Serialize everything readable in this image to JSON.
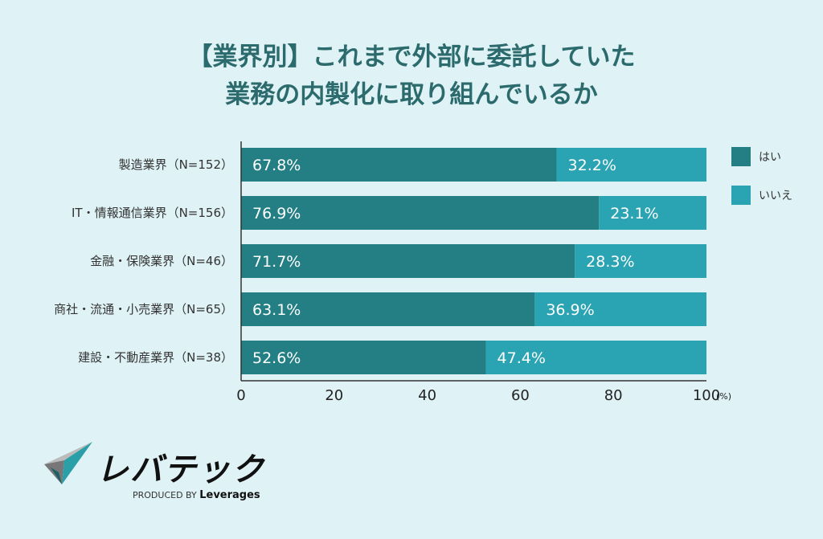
{
  "chart_data": {
    "type": "bar",
    "orientation": "horizontal-stacked",
    "title_lines": [
      "【業界別】これまで外部に委託していた",
      "業務の内製化に取り組んでいるか"
    ],
    "categories": [
      "製造業界（N=152）",
      "IT・情報通信業界（N=156）",
      "金融・保険業界（N=46）",
      "商社・流通・小売業界（N=65）",
      "建設・不動産業界（N=38）"
    ],
    "series": [
      {
        "name": "はい",
        "color": "#237f84",
        "values": [
          67.8,
          76.9,
          71.7,
          63.1,
          52.6
        ]
      },
      {
        "name": "いいえ",
        "color": "#2aa4b2",
        "values": [
          32.2,
          23.1,
          28.3,
          36.9,
          47.4
        ]
      }
    ],
    "xlim": [
      0,
      100
    ],
    "xticks": [
      0,
      20,
      40,
      60,
      80,
      100
    ],
    "xunit": "(%)",
    "legend": "right",
    "grid": false
  },
  "logo": {
    "name": "レバテック",
    "sub": "PRODUCED BY",
    "brand": "Leverages"
  }
}
